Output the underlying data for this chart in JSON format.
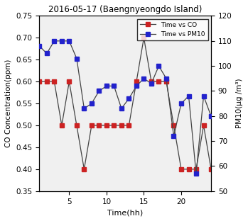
{
  "title": "2016-05-17 (Baengnyeongdo Island)",
  "xlabel": "Time(hh)",
  "ylabel_left": "CO Concentration(ppm)",
  "ylabel_right": "PM10(μg /m³)",
  "time_co": [
    1,
    2,
    3,
    4,
    5,
    6,
    7,
    8,
    9,
    10,
    11,
    12,
    13,
    14,
    15,
    16,
    17,
    18,
    19,
    20,
    21,
    22,
    23,
    24
  ],
  "co_values": [
    0.6,
    0.6,
    0.6,
    0.5,
    0.6,
    0.5,
    0.4,
    0.5,
    0.5,
    0.5,
    0.5,
    0.5,
    0.5,
    0.6,
    0.7,
    0.6,
    0.6,
    0.6,
    0.5,
    0.4,
    0.4,
    0.4,
    0.5,
    0.4
  ],
  "time_pm10": [
    1,
    2,
    3,
    4,
    5,
    6,
    7,
    8,
    9,
    10,
    11,
    12,
    13,
    14,
    15,
    16,
    17,
    18,
    19,
    20,
    21,
    22,
    23,
    24
  ],
  "pm10_values": [
    108,
    105,
    110,
    110,
    110,
    103,
    83,
    85,
    90,
    92,
    92,
    83,
    87,
    92,
    95,
    93,
    100,
    95,
    72,
    85,
    88,
    57,
    88,
    80
  ],
  "co_color": "#cc2222",
  "pm10_color": "#2222cc",
  "line_color": "#444444",
  "ylim_left": [
    0.35,
    0.75
  ],
  "ylim_right": [
    50,
    120
  ],
  "yticks_left": [
    0.35,
    0.4,
    0.45,
    0.5,
    0.55,
    0.6,
    0.65,
    0.7,
    0.75
  ],
  "yticks_right": [
    50,
    60,
    70,
    80,
    90,
    100,
    110,
    120
  ],
  "xticks": [
    5,
    10,
    15,
    20
  ],
  "xlim": [
    1,
    24
  ],
  "legend_labels": [
    "Time vs CO",
    "Time vs PM10"
  ],
  "legend_loc": "upper right",
  "bg_color": "#f0f0f0",
  "fig_color": "#ffffff"
}
